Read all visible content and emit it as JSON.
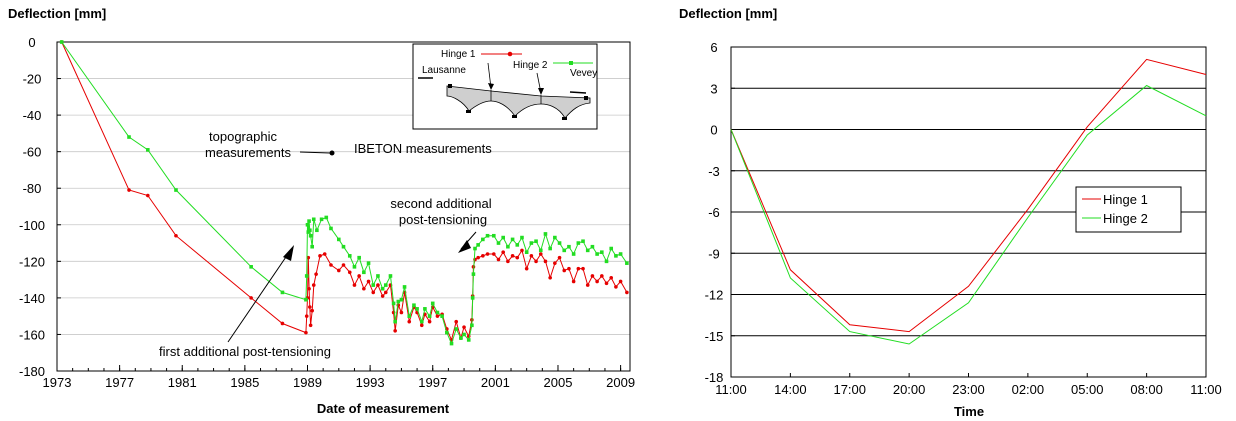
{
  "chart_data": [
    {
      "type": "line",
      "ylabel": "Deflection [mm]",
      "xlabel": "Date of measurement",
      "xlim": [
        1973,
        2009.6
      ],
      "ylim": [
        -180,
        0
      ],
      "xticks": [
        "1973",
        "1977",
        "1981",
        "1985",
        "1989",
        "1993",
        "1997",
        "2001",
        "2005",
        "2009"
      ],
      "yticks": [
        "0",
        "-20",
        "-40",
        "-60",
        "-80",
        "-100",
        "-120",
        "-140",
        "-160",
        "-180"
      ],
      "grid": "horizontal",
      "series": [
        {
          "name": "Hinge 1",
          "color": "#e60000",
          "marker": "circle",
          "points": [
            [
              1973.3,
              0
            ],
            [
              1977.6,
              -81
            ],
            [
              1978.8,
              -84
            ],
            [
              1980.6,
              -106
            ],
            [
              1985.4,
              -140
            ],
            [
              1987.4,
              -154
            ],
            [
              1988.9,
              -159
            ],
            [
              1988.95,
              -150
            ],
            [
              1989.0,
              -140
            ],
            [
              1989.05,
              -118
            ],
            [
              1989.1,
              -135
            ],
            [
              1989.15,
              -145
            ],
            [
              1989.2,
              -155
            ],
            [
              1989.3,
              -147
            ],
            [
              1989.4,
              -133
            ],
            [
              1989.55,
              -127
            ],
            [
              1989.8,
              -117
            ],
            [
              1990.1,
              -116
            ],
            [
              1990.5,
              -122
            ],
            [
              1991.0,
              -125
            ],
            [
              1991.3,
              -122
            ],
            [
              1991.7,
              -126
            ],
            [
              1992.0,
              -133
            ],
            [
              1992.3,
              -128
            ],
            [
              1992.6,
              -135
            ],
            [
              1992.9,
              -131
            ],
            [
              1993.2,
              -137
            ],
            [
              1993.5,
              -133
            ],
            [
              1993.8,
              -139
            ],
            [
              1994.0,
              -137
            ],
            [
              1994.3,
              -133
            ],
            [
              1994.5,
              -148
            ],
            [
              1994.6,
              -158
            ],
            [
              1994.8,
              -144
            ],
            [
              1995.0,
              -148
            ],
            [
              1995.2,
              -137
            ],
            [
              1995.5,
              -153
            ],
            [
              1995.8,
              -145
            ],
            [
              1996.0,
              -148
            ],
            [
              1996.3,
              -155
            ],
            [
              1996.5,
              -149
            ],
            [
              1996.8,
              -153
            ],
            [
              1997.0,
              -145
            ],
            [
              1997.3,
              -150
            ],
            [
              1997.6,
              -149
            ],
            [
              1997.9,
              -157
            ],
            [
              1998.2,
              -163
            ],
            [
              1998.5,
              -153
            ],
            [
              1998.8,
              -162
            ],
            [
              1999.0,
              -156
            ],
            [
              1999.3,
              -161
            ],
            [
              1999.5,
              -152
            ],
            [
              1999.55,
              -139
            ],
            [
              1999.6,
              -123
            ],
            [
              1999.7,
              -119
            ],
            [
              1999.9,
              -118
            ],
            [
              2000.2,
              -117
            ],
            [
              2000.5,
              -116
            ],
            [
              2000.9,
              -116
            ],
            [
              2001.2,
              -119
            ],
            [
              2001.5,
              -115
            ],
            [
              2001.8,
              -120
            ],
            [
              2002.1,
              -117
            ],
            [
              2002.4,
              -118
            ],
            [
              2002.7,
              -114
            ],
            [
              2003.0,
              -124
            ],
            [
              2003.3,
              -117
            ],
            [
              2003.6,
              -120
            ],
            [
              2003.9,
              -116
            ],
            [
              2004.2,
              -120
            ],
            [
              2004.5,
              -129
            ],
            [
              2004.8,
              -121
            ],
            [
              2005.1,
              -118
            ],
            [
              2005.4,
              -125
            ],
            [
              2005.7,
              -124
            ],
            [
              2006.0,
              -131
            ],
            [
              2006.3,
              -124
            ],
            [
              2006.6,
              -124
            ],
            [
              2006.9,
              -133
            ],
            [
              2007.2,
              -128
            ],
            [
              2007.5,
              -131
            ],
            [
              2007.8,
              -128
            ],
            [
              2008.1,
              -132
            ],
            [
              2008.4,
              -129
            ],
            [
              2008.7,
              -134
            ],
            [
              2009.0,
              -131
            ],
            [
              2009.4,
              -137
            ]
          ]
        },
        {
          "name": "Hinge 2",
          "color": "#22dd22",
          "marker": "square",
          "points": [
            [
              1973.3,
              0
            ],
            [
              1977.6,
              -52
            ],
            [
              1978.8,
              -59
            ],
            [
              1980.6,
              -81
            ],
            [
              1985.4,
              -123
            ],
            [
              1987.4,
              -137
            ],
            [
              1988.9,
              -141
            ],
            [
              1988.95,
              -128
            ],
            [
              1989.0,
              -100
            ],
            [
              1989.05,
              -104
            ],
            [
              1989.1,
              -98
            ],
            [
              1989.15,
              -103
            ],
            [
              1989.2,
              -106
            ],
            [
              1989.3,
              -112
            ],
            [
              1989.4,
              -97
            ],
            [
              1989.6,
              -103
            ],
            [
              1989.9,
              -97
            ],
            [
              1990.2,
              -96
            ],
            [
              1990.5,
              -102
            ],
            [
              1991.0,
              -108
            ],
            [
              1991.3,
              -112
            ],
            [
              1991.7,
              -117
            ],
            [
              1992.0,
              -123
            ],
            [
              1992.3,
              -118
            ],
            [
              1992.6,
              -126
            ],
            [
              1992.9,
              -121
            ],
            [
              1993.2,
              -133
            ],
            [
              1993.5,
              -128
            ],
            [
              1993.8,
              -135
            ],
            [
              1994.0,
              -133
            ],
            [
              1994.3,
              -128
            ],
            [
              1994.5,
              -143
            ],
            [
              1994.6,
              -153
            ],
            [
              1994.8,
              -142
            ],
            [
              1995.0,
              -141
            ],
            [
              1995.2,
              -134
            ],
            [
              1995.5,
              -150
            ],
            [
              1995.8,
              -144
            ],
            [
              1996.0,
              -146
            ],
            [
              1996.3,
              -153
            ],
            [
              1996.5,
              -146
            ],
            [
              1996.8,
              -150
            ],
            [
              1997.0,
              -143
            ],
            [
              1997.3,
              -148
            ],
            [
              1997.6,
              -150
            ],
            [
              1997.9,
              -159
            ],
            [
              1998.2,
              -165
            ],
            [
              1998.5,
              -157
            ],
            [
              1998.8,
              -162
            ],
            [
              1999.0,
              -160
            ],
            [
              1999.3,
              -163
            ],
            [
              1999.5,
              -155
            ],
            [
              1999.55,
              -140
            ],
            [
              1999.6,
              -127
            ],
            [
              1999.7,
              -113
            ],
            [
              1999.9,
              -111
            ],
            [
              2000.2,
              -108
            ],
            [
              2000.5,
              -106
            ],
            [
              2000.9,
              -106
            ],
            [
              2001.2,
              -110
            ],
            [
              2001.5,
              -107
            ],
            [
              2001.8,
              -112
            ],
            [
              2002.1,
              -108
            ],
            [
              2002.4,
              -111
            ],
            [
              2002.7,
              -107
            ],
            [
              2003.0,
              -115
            ],
            [
              2003.3,
              -110
            ],
            [
              2003.6,
              -109
            ],
            [
              2003.9,
              -114
            ],
            [
              2004.2,
              -105
            ],
            [
              2004.5,
              -113
            ],
            [
              2004.8,
              -107
            ],
            [
              2005.1,
              -110
            ],
            [
              2005.4,
              -114
            ],
            [
              2005.7,
              -112
            ],
            [
              2006.0,
              -116
            ],
            [
              2006.3,
              -110
            ],
            [
              2006.6,
              -109
            ],
            [
              2006.9,
              -114
            ],
            [
              2007.2,
              -112
            ],
            [
              2007.5,
              -116
            ],
            [
              2007.8,
              -115
            ],
            [
              2008.1,
              -120
            ],
            [
              2008.4,
              -113
            ],
            [
              2008.7,
              -117
            ],
            [
              2009.0,
              -116
            ],
            [
              2009.4,
              -121
            ]
          ]
        }
      ],
      "annotations": [
        "topographic",
        "measurements",
        "IBETON measurements",
        "second additional",
        "post-tensioning",
        "first additional post-tensioning"
      ],
      "inset": {
        "hinge1": "Hinge 1",
        "hinge2": "Hinge 2",
        "left": "Lausanne",
        "right": "Vevey"
      }
    },
    {
      "type": "line",
      "ylabel": "Deflection [mm]",
      "xlabel": "Time",
      "categories": [
        "11:00",
        "14:00",
        "17:00",
        "20:00",
        "23:00",
        "02:00",
        "05:00",
        "08:00",
        "11:00"
      ],
      "yticks": [
        "6",
        "3",
        "0",
        "-3",
        "-6",
        "-9",
        "-12",
        "-15",
        "-18"
      ],
      "ylim": [
        -18,
        6
      ],
      "grid": "horizontal",
      "legend": "center-right",
      "series": [
        {
          "name": "Hinge 1",
          "color": "#e60000",
          "values": [
            0,
            -10.2,
            -14.2,
            -14.7,
            -11.4,
            -5.8,
            0.2,
            5.1,
            4.0
          ]
        },
        {
          "name": "Hinge 2",
          "color": "#22dd22",
          "values": [
            0,
            -10.8,
            -14.7,
            -15.6,
            -12.6,
            -6.4,
            -0.4,
            3.2,
            1.0
          ]
        }
      ]
    }
  ]
}
